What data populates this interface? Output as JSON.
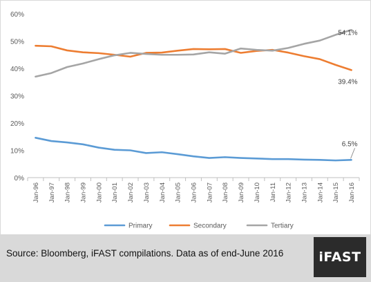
{
  "chart_data": {
    "type": "line",
    "categories": [
      "Jan-96",
      "Jan-97",
      "Jan-98",
      "Jan-99",
      "Jan-00",
      "Jan-01",
      "Jan-02",
      "Jan-03",
      "Jan-04",
      "Jan-05",
      "Jan-06",
      "Jan-07",
      "Jan-08",
      "Jan-09",
      "Jan-10",
      "Jan-11",
      "Jan-12",
      "Jan-13",
      "Jan-14",
      "Jan-15",
      "Jan-16"
    ],
    "series": [
      {
        "name": "Primary",
        "color": "#5b9bd5",
        "values": [
          14.6,
          13.4,
          12.9,
          12.2,
          11.0,
          10.2,
          10.0,
          9.0,
          9.3,
          8.6,
          7.8,
          7.2,
          7.5,
          7.2,
          7.0,
          6.8,
          6.8,
          6.6,
          6.5,
          6.3,
          6.5
        ],
        "end_label": "6.5%"
      },
      {
        "name": "Secondary",
        "color": "#ed7d31",
        "values": [
          48.3,
          48.1,
          46.6,
          45.9,
          45.6,
          45.0,
          44.3,
          45.7,
          45.8,
          46.5,
          47.1,
          47.0,
          47.1,
          45.7,
          46.4,
          46.8,
          45.8,
          44.5,
          43.4,
          41.3,
          39.4
        ],
        "end_label": "39.4%"
      },
      {
        "name": "Tertiary",
        "color": "#a5a5a5",
        "values": [
          37.0,
          38.3,
          40.5,
          41.8,
          43.4,
          44.8,
          45.7,
          45.3,
          45.0,
          45.0,
          45.1,
          45.9,
          45.4,
          47.3,
          46.8,
          46.5,
          47.5,
          49.0,
          50.2,
          52.3,
          54.1
        ],
        "end_label": "54.1%"
      }
    ],
    "y_ticks": [
      "0%",
      "10%",
      "20%",
      "30%",
      "40%",
      "50%",
      "60%"
    ],
    "ylim": [
      0,
      60
    ],
    "grid": false,
    "legend_position": "bottom"
  },
  "footer": {
    "source": "Source: Bloomberg, iFAST compilations. Data as of end-June 2016",
    "logo_text": "iFAST"
  }
}
